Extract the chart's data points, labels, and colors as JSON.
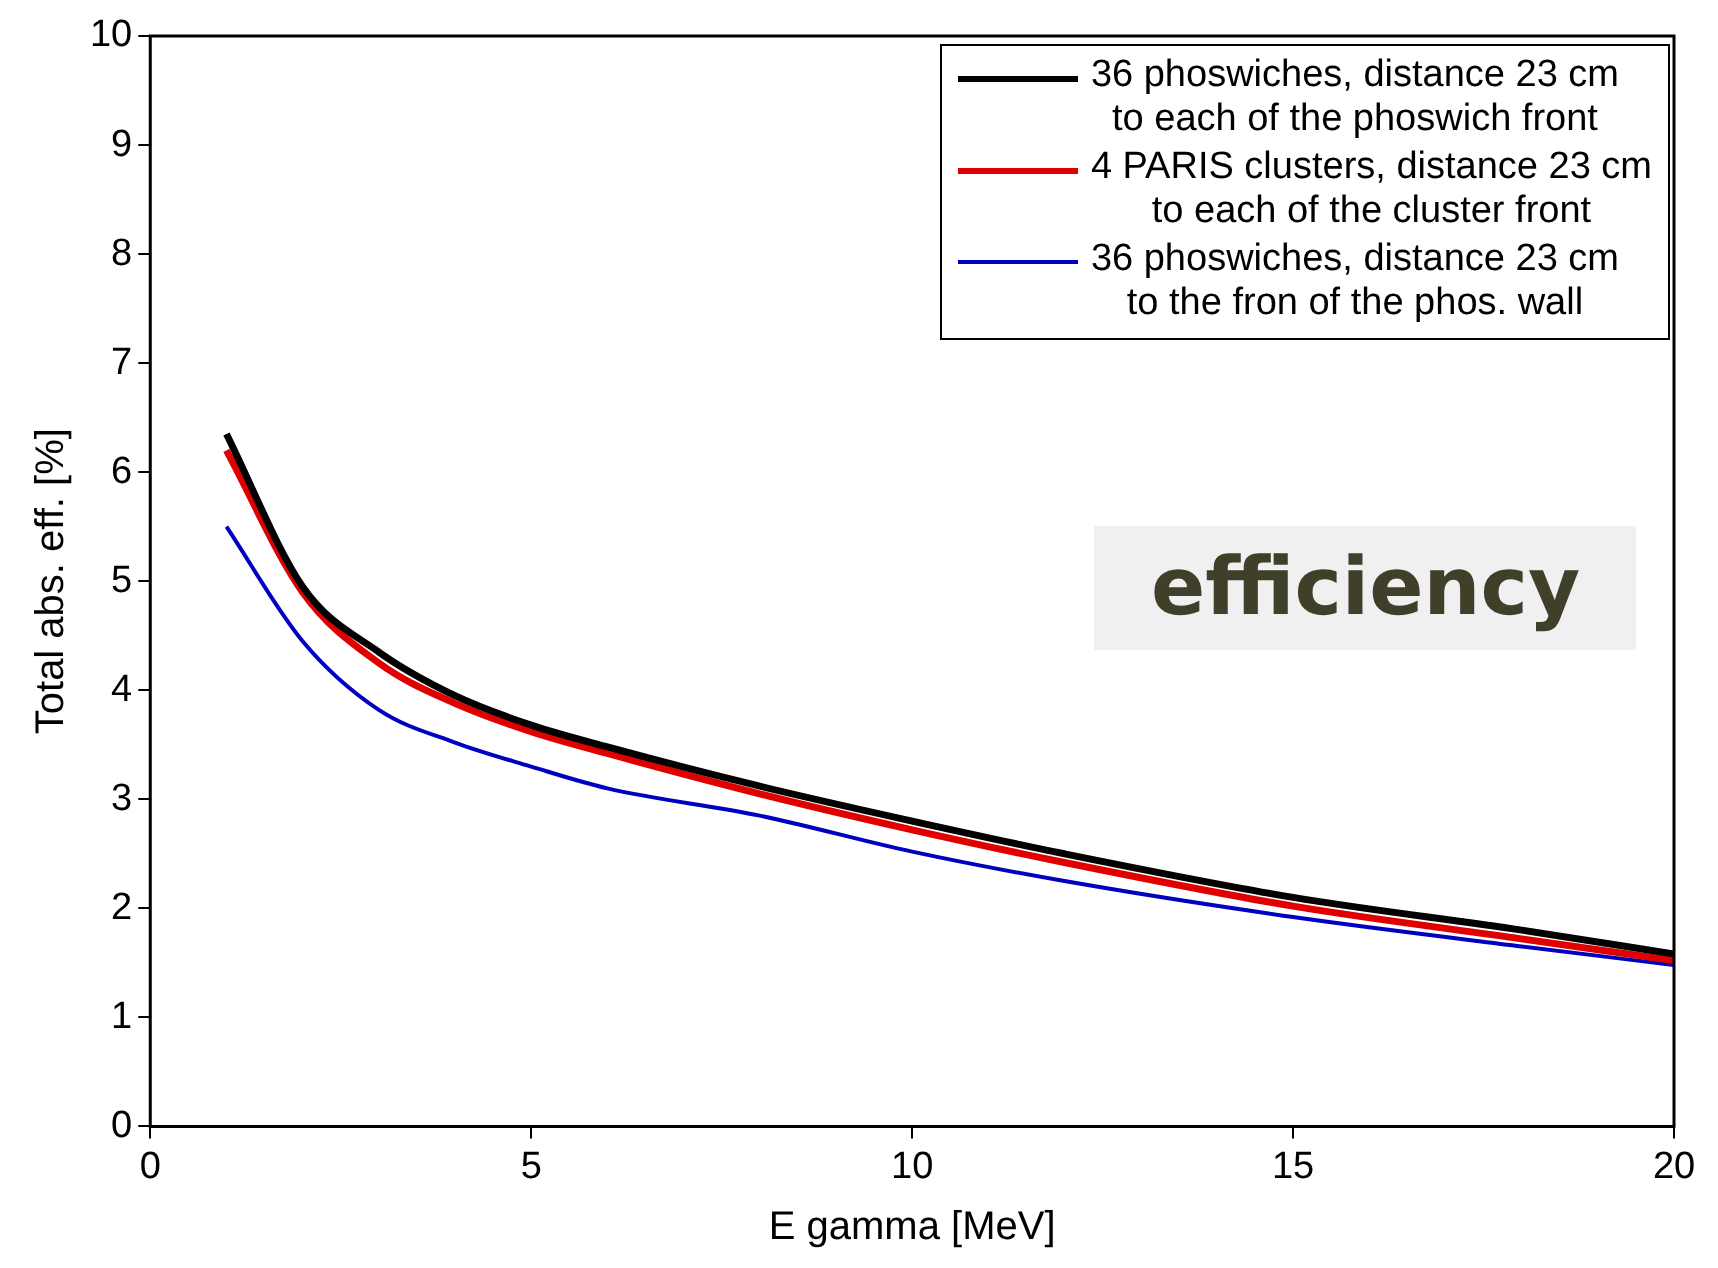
{
  "chart_data": {
    "type": "line",
    "xlabel": "E gamma [MeV]",
    "ylabel": "Total abs. eff. [%]",
    "xlim": [
      0,
      20
    ],
    "xticks": [
      0,
      5,
      10,
      15,
      20
    ],
    "ylim": [
      0,
      10
    ],
    "yticks": [
      0,
      1,
      2,
      3,
      4,
      5,
      6,
      7,
      8,
      9,
      10
    ],
    "grid": false,
    "legend": "top right",
    "marker": "none",
    "line_style": "solid",
    "annotations": [
      "efficiency"
    ],
    "x": [
      1,
      2,
      3,
      4,
      5,
      6,
      8,
      10,
      12,
      15,
      18,
      20
    ],
    "series": [
      {
        "name": "36 phoswiches, distance 23 cm\nto each of the phoswich front",
        "color": "#000000",
        "values": [
          6.35,
          4.95,
          4.35,
          3.95,
          3.68,
          3.48,
          3.12,
          2.8,
          2.5,
          2.1,
          1.8,
          1.58
        ]
      },
      {
        "name": "4 PARIS clusters, distance 23 cm\nto each of the cluster front",
        "color": "#e00000",
        "values": [
          6.2,
          4.9,
          4.25,
          3.88,
          3.62,
          3.42,
          3.05,
          2.72,
          2.42,
          2.02,
          1.72,
          1.52
        ]
      },
      {
        "name": "36 phoswiches, distance 23 cm\nto the fron of the phos. wall",
        "color": "#0000c0",
        "values": [
          5.5,
          4.45,
          3.82,
          3.52,
          3.3,
          3.1,
          2.85,
          2.52,
          2.25,
          1.92,
          1.65,
          1.48
        ]
      }
    ]
  }
}
